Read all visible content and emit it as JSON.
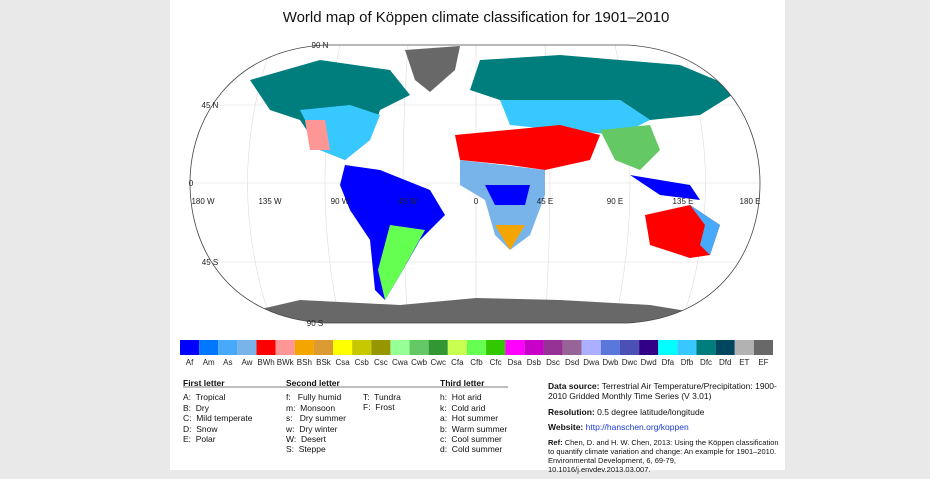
{
  "title": "World map of Köppen climate classification for 1901–2010",
  "latitude_labels": [
    "90 N",
    "45 N",
    "0",
    "45 S",
    "90 S"
  ],
  "longitude_labels": [
    "180 W",
    "135 W",
    "90 W",
    "45 W",
    "0",
    "45 E",
    "90 E",
    "135 E",
    "180 E"
  ],
  "legend": [
    {
      "label": "Af",
      "color": "#0000fe"
    },
    {
      "label": "Am",
      "color": "#0077ff"
    },
    {
      "label": "As",
      "color": "#46a9fa"
    },
    {
      "label": "Aw",
      "color": "#78b4ea"
    },
    {
      "label": "BWh",
      "color": "#ff0000"
    },
    {
      "label": "BWk",
      "color": "#ff9696"
    },
    {
      "label": "BSh",
      "color": "#f5a500"
    },
    {
      "label": "BSk",
      "color": "#dc9a32"
    },
    {
      "label": "Csa",
      "color": "#ffff00"
    },
    {
      "label": "Csb",
      "color": "#c8c800"
    },
    {
      "label": "Csc",
      "color": "#969600"
    },
    {
      "label": "Cwa",
      "color": "#96ff96"
    },
    {
      "label": "Cwb",
      "color": "#64c864"
    },
    {
      "label": "Cwc",
      "color": "#329632"
    },
    {
      "label": "Cfa",
      "color": "#c8ff50"
    },
    {
      "label": "Cfb",
      "color": "#64ff50"
    },
    {
      "label": "Cfc",
      "color": "#32c800"
    },
    {
      "label": "Dsa",
      "color": "#ff00ff"
    },
    {
      "label": "Dsb",
      "color": "#c800c8"
    },
    {
      "label": "Dsc",
      "color": "#963296"
    },
    {
      "label": "Dsd",
      "color": "#966496"
    },
    {
      "label": "Dwa",
      "color": "#aaafff"
    },
    {
      "label": "Dwb",
      "color": "#5a78dc"
    },
    {
      "label": "Dwc",
      "color": "#4b50b4"
    },
    {
      "label": "Dwd",
      "color": "#320087"
    },
    {
      "label": "Dfa",
      "color": "#00ffff"
    },
    {
      "label": "Dfb",
      "color": "#37c8ff"
    },
    {
      "label": "Dfc",
      "color": "#007d7d"
    },
    {
      "label": "Dfd",
      "color": "#00465f"
    },
    {
      "label": "ET",
      "color": "#b2b2b2"
    },
    {
      "label": "EF",
      "color": "#686868"
    }
  ],
  "key": {
    "first": {
      "heading": "First letter",
      "items": [
        "A:  Tropical",
        "B:  Dry",
        "C:  Mild temperate",
        "D:  Snow",
        "E:  Polar"
      ]
    },
    "second": {
      "heading": "Second letter",
      "items": [
        "f:   Fully humid",
        "m:  Monsoon",
        "s:   Dry summer",
        "w:  Dry winter",
        "W:  Desert",
        "S:  Steppe"
      ],
      "extra": [
        "T:  Tundra",
        "F:  Frost"
      ]
    },
    "third": {
      "heading": "Third letter",
      "items": [
        "h:  Hot arid",
        "k:  Cold arid",
        "a:  Hot summer",
        "b:  Warm summer",
        "c:  Cool summer",
        "d:  Cold summer"
      ]
    }
  },
  "info": {
    "source_label": "Data source:",
    "source": "Terrestrial Air Temperature/Precipitation: 1900-2010 Gridded Monthly Time Series (V 3.01)",
    "resolution_label": "Resolution:",
    "resolution": "0.5 degree latitude/longitude",
    "website_label": "Website:",
    "website": "http://hanschen.org/koppen",
    "ref_label": "Ref:",
    "ref": "Chen, D. and H. W. Chen, 2013: Using the Köppen classification to quantify climate variation and change: An example for 1901–2010. Environmental Development, 6, 69-79, 10.1016/j.envdev.2013.03.007."
  }
}
